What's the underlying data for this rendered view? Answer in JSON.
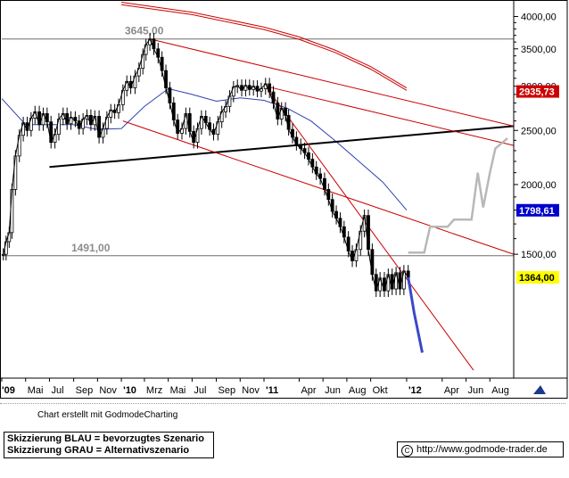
{
  "chart_data": {
    "type": "candlestick",
    "title": "",
    "xlabel": "",
    "ylabel": "",
    "ylim": [
      900,
      4250
    ],
    "y_scale": "log",
    "y_ticks": [
      {
        "value": 4000,
        "label": "4000,00"
      },
      {
        "value": 3500,
        "label": "3500,00"
      },
      {
        "value": 3000,
        "label": "3000,00"
      },
      {
        "value": 2500,
        "label": "2500,00"
      },
      {
        "value": 2000,
        "label": "2000,00"
      },
      {
        "value": 1500,
        "label": "1500,00"
      }
    ],
    "x_range": [
      "2009-03-01",
      "2012-10-01"
    ],
    "x_ticks": [
      {
        "date": "2009-03-01",
        "label": "'09",
        "bold": true
      },
      {
        "date": "2009-05-01",
        "label": "Mai"
      },
      {
        "date": "2009-07-01",
        "label": "Jul"
      },
      {
        "date": "2009-09-01",
        "label": "Sep"
      },
      {
        "date": "2009-11-01",
        "label": "Nov"
      },
      {
        "date": "2010-01-01",
        "label": "'10",
        "bold": true
      },
      {
        "date": "2010-03-01",
        "label": "Mrz"
      },
      {
        "date": "2010-05-01",
        "label": "Mai"
      },
      {
        "date": "2010-07-01",
        "label": "Jul"
      },
      {
        "date": "2010-09-01",
        "label": "Sep"
      },
      {
        "date": "2010-11-01",
        "label": "Nov"
      },
      {
        "date": "2011-01-01",
        "label": "'11",
        "bold": true
      },
      {
        "date": "2011-04-01",
        "label": "Apr"
      },
      {
        "date": "2011-06-01",
        "label": "Jun"
      },
      {
        "date": "2011-08-01",
        "label": "Aug"
      },
      {
        "date": "2011-10-01",
        "label": "Okt"
      },
      {
        "date": "2012-01-01",
        "label": "'12",
        "bold": true
      },
      {
        "date": "2012-04-01",
        "label": "Apr"
      },
      {
        "date": "2012-06-01",
        "label": "Jun"
      },
      {
        "date": "2012-08-01",
        "label": "Aug"
      }
    ],
    "price_series": [
      [
        "2009-03-05",
        1500
      ],
      [
        "2009-03-12",
        1580
      ],
      [
        "2009-03-20",
        1640
      ],
      [
        "2009-03-27",
        1960
      ],
      [
        "2009-04-05",
        2250
      ],
      [
        "2009-04-15",
        2450
      ],
      [
        "2009-04-25",
        2580
      ],
      [
        "2009-05-05",
        2500
      ],
      [
        "2009-05-15",
        2630
      ],
      [
        "2009-05-25",
        2700
      ],
      [
        "2009-06-05",
        2560
      ],
      [
        "2009-06-15",
        2680
      ],
      [
        "2009-06-25",
        2590
      ],
      [
        "2009-07-05",
        2380
      ],
      [
        "2009-07-15",
        2460
      ],
      [
        "2009-07-25",
        2620
      ],
      [
        "2009-08-05",
        2680
      ],
      [
        "2009-08-15",
        2570
      ],
      [
        "2009-08-25",
        2640
      ],
      [
        "2009-09-05",
        2600
      ],
      [
        "2009-09-15",
        2520
      ],
      [
        "2009-09-25",
        2620
      ],
      [
        "2009-10-05",
        2660
      ],
      [
        "2009-10-15",
        2560
      ],
      [
        "2009-10-25",
        2650
      ],
      [
        "2009-11-05",
        2430
      ],
      [
        "2009-11-15",
        2520
      ],
      [
        "2009-11-25",
        2640
      ],
      [
        "2009-12-05",
        2720
      ],
      [
        "2009-12-15",
        2690
      ],
      [
        "2009-12-25",
        2780
      ],
      [
        "2010-01-05",
        2950
      ],
      [
        "2010-01-15",
        3060
      ],
      [
        "2010-01-25",
        2980
      ],
      [
        "2010-02-05",
        3130
      ],
      [
        "2010-02-15",
        3230
      ],
      [
        "2010-02-25",
        3420
      ],
      [
        "2010-03-05",
        3560
      ],
      [
        "2010-03-15",
        3645
      ],
      [
        "2010-03-25",
        3500
      ],
      [
        "2010-04-05",
        3380
      ],
      [
        "2010-04-15",
        3200
      ],
      [
        "2010-04-25",
        2980
      ],
      [
        "2010-05-05",
        2800
      ],
      [
        "2010-05-15",
        2610
      ],
      [
        "2010-05-25",
        2470
      ],
      [
        "2010-06-05",
        2520
      ],
      [
        "2010-06-15",
        2680
      ],
      [
        "2010-06-25",
        2490
      ],
      [
        "2010-07-05",
        2380
      ],
      [
        "2010-07-15",
        2520
      ],
      [
        "2010-07-25",
        2650
      ],
      [
        "2010-08-05",
        2580
      ],
      [
        "2010-08-15",
        2510
      ],
      [
        "2010-08-25",
        2460
      ],
      [
        "2010-09-05",
        2590
      ],
      [
        "2010-09-15",
        2700
      ],
      [
        "2010-09-25",
        2760
      ],
      [
        "2010-10-05",
        2880
      ],
      [
        "2010-10-15",
        2990
      ],
      [
        "2010-10-25",
        3010
      ],
      [
        "2010-11-05",
        2950
      ],
      [
        "2010-11-15",
        3010
      ],
      [
        "2010-11-25",
        2960
      ],
      [
        "2010-12-05",
        3000
      ],
      [
        "2010-12-15",
        2940
      ],
      [
        "2010-12-25",
        2970
      ],
      [
        "2011-01-05",
        3030
      ],
      [
        "2011-01-15",
        2930
      ],
      [
        "2011-01-25",
        2800
      ],
      [
        "2011-02-05",
        2620
      ],
      [
        "2011-02-15",
        2740
      ],
      [
        "2011-02-25",
        2660
      ],
      [
        "2011-03-05",
        2510
      ],
      [
        "2011-03-15",
        2430
      ],
      [
        "2011-03-25",
        2360
      ],
      [
        "2011-04-05",
        2320
      ],
      [
        "2011-04-15",
        2280
      ],
      [
        "2011-04-25",
        2220
      ],
      [
        "2011-05-05",
        2150
      ],
      [
        "2011-05-15",
        2090
      ],
      [
        "2011-05-25",
        2050
      ],
      [
        "2011-06-05",
        1960
      ],
      [
        "2011-06-15",
        1880
      ],
      [
        "2011-06-25",
        1790
      ],
      [
        "2011-07-05",
        1740
      ],
      [
        "2011-07-15",
        1680
      ],
      [
        "2011-07-25",
        1610
      ],
      [
        "2011-08-05",
        1520
      ],
      [
        "2011-08-15",
        1460
      ],
      [
        "2011-08-25",
        1530
      ],
      [
        "2011-09-05",
        1650
      ],
      [
        "2011-09-15",
        1760
      ],
      [
        "2011-09-25",
        1530
      ],
      [
        "2011-10-05",
        1380
      ],
      [
        "2011-10-15",
        1290
      ],
      [
        "2011-10-25",
        1360
      ],
      [
        "2011-11-05",
        1290
      ],
      [
        "2011-11-15",
        1380
      ],
      [
        "2011-11-25",
        1300
      ],
      [
        "2011-12-05",
        1390
      ],
      [
        "2011-12-15",
        1300
      ],
      [
        "2011-12-25",
        1400
      ],
      [
        "2012-01-05",
        1364
      ]
    ],
    "moving_average_short": [
      [
        "2009-03-01",
        2850
      ],
      [
        "2009-05-01",
        2560
      ],
      [
        "2009-07-01",
        2560
      ],
      [
        "2009-09-01",
        2560
      ],
      [
        "2009-11-01",
        2510
      ],
      [
        "2010-01-01",
        2520
      ],
      [
        "2010-03-01",
        2760
      ],
      [
        "2010-05-01",
        2970
      ],
      [
        "2010-07-01",
        2900
      ],
      [
        "2010-09-01",
        2820
      ],
      [
        "2010-11-01",
        2860
      ],
      [
        "2011-01-01",
        2830
      ],
      [
        "2011-03-01",
        2740
      ],
      [
        "2011-05-01",
        2600
      ],
      [
        "2011-07-01",
        2400
      ],
      [
        "2011-09-01",
        2200
      ],
      [
        "2011-11-01",
        2020
      ],
      [
        "2012-01-01",
        1800
      ]
    ],
    "moving_average_long": [
      [
        "2010-01-01",
        4200
      ],
      [
        "2010-07-01",
        4030
      ],
      [
        "2011-01-01",
        3790
      ],
      [
        "2011-04-01",
        3640
      ],
      [
        "2011-07-01",
        3450
      ],
      [
        "2011-10-01",
        3220
      ],
      [
        "2012-01-01",
        2950
      ]
    ],
    "horizontal_levels": [
      {
        "value": 3645,
        "label": "3645,00"
      },
      {
        "value": 1491,
        "label": "1491,00"
      }
    ],
    "trend_lines": [
      {
        "color": "#000000",
        "points": [
          [
            "2009-07-01",
            2150
          ],
          [
            "2012-10-01",
            2545
          ]
        ]
      },
      {
        "color": "#cc0000",
        "points": [
          [
            "2010-03-15",
            3645
          ],
          [
            "2012-10-01",
            2545
          ]
        ]
      },
      {
        "color": "#cc0000",
        "points": [
          [
            "2010-01-05",
            2600
          ],
          [
            "2012-10-01",
            1500
          ]
        ]
      },
      {
        "color": "#cc0000",
        "points": [
          [
            "2011-01-05",
            3000
          ],
          [
            "2012-10-01",
            2350
          ]
        ]
      },
      {
        "color": "#cc0000",
        "points": [
          [
            "2011-01-05",
            3000
          ],
          [
            "2012-06-20",
            930
          ]
        ]
      }
    ],
    "scenario_blue": [
      [
        "2012-01-05",
        1364
      ],
      [
        "2012-01-20",
        1180
      ],
      [
        "2012-02-10",
        1000
      ]
    ],
    "scenario_grey": [
      [
        "2012-01-05",
        1510
      ],
      [
        "2012-02-15",
        1510
      ],
      [
        "2012-03-01",
        1680
      ],
      [
        "2012-04-15",
        1680
      ],
      [
        "2012-05-01",
        1730
      ],
      [
        "2012-06-15",
        1730
      ],
      [
        "2012-07-01",
        2100
      ],
      [
        "2012-07-15",
        1820
      ],
      [
        "2012-08-01",
        2100
      ],
      [
        "2012-08-15",
        2320
      ],
      [
        "2012-09-15",
        2420
      ]
    ],
    "price_labels": [
      {
        "value": 2935.73,
        "label": "2935,73",
        "color": "#cc0000",
        "text_color": "#ffffff"
      },
      {
        "value": 1798.61,
        "label": "1798,61",
        "color": "#0000cc",
        "text_color": "#ffffff"
      },
      {
        "value": 1364.0,
        "label": "1364,00",
        "color": "#ffff00",
        "text_color": "#000000"
      }
    ]
  },
  "credit_text": "Chart erstellt mit GodmodeCharting",
  "legend": {
    "line1": "Skizzierung BLAU = bevorzugtes Szenario",
    "line2": "Skizzierung GRAU = Alternativszenario"
  },
  "source": {
    "symbol": "C",
    "url": "http://www.godmode-trader.de"
  },
  "colors": {
    "price": "#000000",
    "ma_short": "#3040b0",
    "ma_long": "#cc0000",
    "trend": "#cc0000",
    "blue_scenario": "#3a48c8",
    "grey_scenario": "#b8b8b8"
  }
}
